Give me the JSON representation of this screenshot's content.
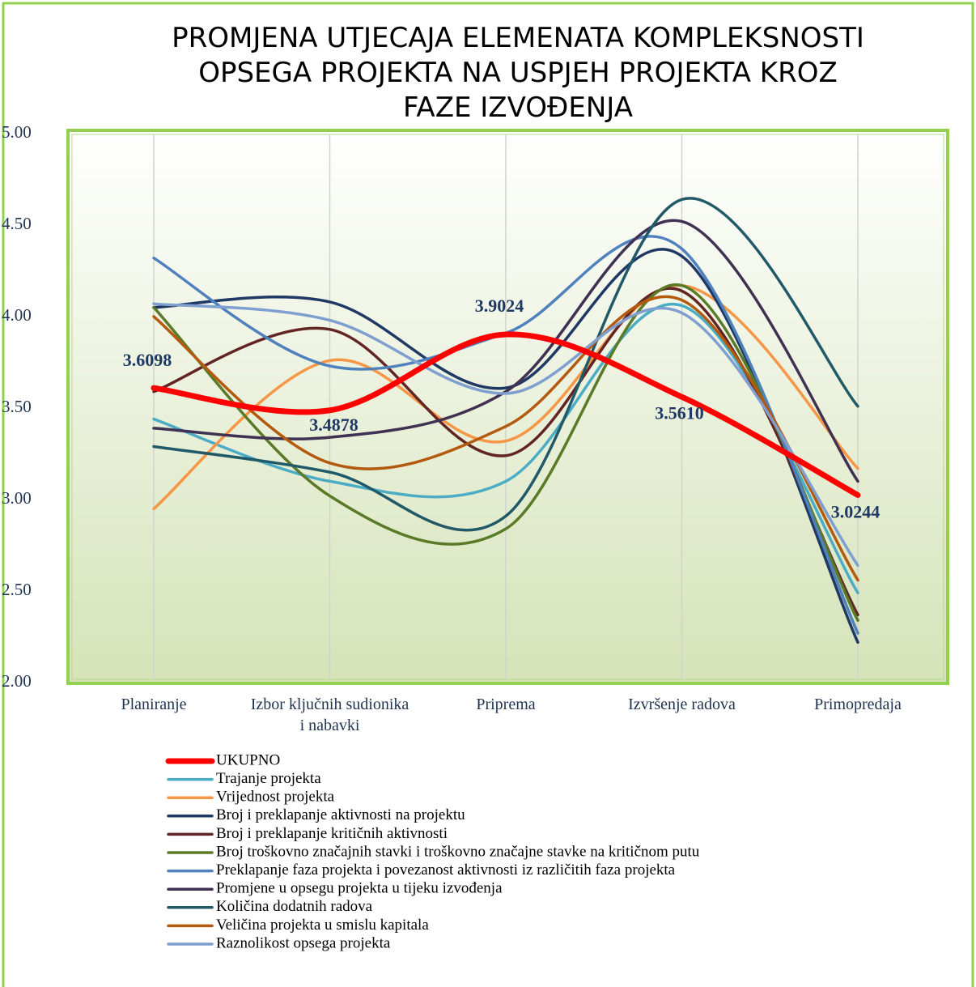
{
  "chart_data": {
    "type": "line",
    "title": [
      "PROMJENA UTJECAJA ELEMENATA KOMPLEKSNOSTI",
      "OPSEGA PROJEKTA NA USPJEH PROJEKTA KROZ",
      "FAZE IZVOĐENJA"
    ],
    "categories": [
      "Planiranje",
      "Izbor ključnih sudionika i nabavki",
      "Priprema",
      "Izvršenje radova",
      "Primopredaja"
    ],
    "ylim": [
      2,
      5
    ],
    "yticks": [
      {
        "value": 2,
        "label": "2.00"
      },
      {
        "value": 2.5,
        "label": "2.50"
      },
      {
        "value": 3,
        "label": "3.00"
      },
      {
        "value": 3.5,
        "label": "3.50"
      },
      {
        "value": 4,
        "label": "4.00"
      },
      {
        "value": 4.5,
        "label": "4.50"
      },
      {
        "value": 5,
        "label": "5.00"
      }
    ],
    "grid": false,
    "smooth": true,
    "legend": "bottom-left",
    "series": [
      {
        "name": "UKUPNO",
        "color": "#ff0000",
        "values": [
          3.6098,
          3.4878,
          3.9024,
          3.561,
          3.0244
        ],
        "value_labels": [
          "3.6098",
          "3.4878",
          "3.9024",
          "3.5610",
          "3.0244"
        ]
      },
      {
        "name": "Trajanje projekta",
        "color": "#4bacc6",
        "values": [
          3.44,
          3.1,
          3.1,
          4.06,
          2.49
        ]
      },
      {
        "name": "Vrijednost projekta",
        "color": "#f79646",
        "values": [
          2.95,
          3.76,
          3.32,
          4.17,
          3.17
        ]
      },
      {
        "name": "Broj i preklapanje aktivnosti na projektu",
        "color": "#1f3864",
        "values": [
          4.05,
          4.08,
          3.61,
          4.33,
          2.22
        ]
      },
      {
        "name": "Broj i preklapanje kritičnih aktivnosti",
        "color": "#632523",
        "values": [
          3.59,
          3.93,
          3.24,
          4.14,
          2.37
        ]
      },
      {
        "name": "Broj troškovno značajnih stavki i troškovno značajne stavke na kritičnom putu",
        "color": "#5a7a28",
        "values": [
          4.05,
          3.02,
          2.84,
          4.17,
          2.34
        ]
      },
      {
        "name": "Preklapanje faza projekta i povezanost aktivnosti iz različitih faza projekta",
        "color": "#4f81bd",
        "values": [
          4.32,
          3.73,
          3.91,
          4.37,
          2.27
        ]
      },
      {
        "name": "Promjene u opsegu projekta u tijeku izvođenja",
        "color": "#403152",
        "values": [
          3.39,
          3.34,
          3.59,
          4.52,
          3.1
        ]
      },
      {
        "name": "Količina dodatnih radova",
        "color": "#215968",
        "values": [
          3.29,
          3.15,
          2.91,
          4.64,
          3.51
        ]
      },
      {
        "name": "Veličina projekta u smislu kapitala",
        "color": "#b35a0f",
        "values": [
          4.0,
          3.2,
          3.4,
          4.09,
          2.56
        ]
      },
      {
        "name": "Raznolikost opsega projekta",
        "color": "#7f9fd0",
        "values": [
          4.07,
          3.98,
          3.58,
          4.02,
          2.64
        ]
      }
    ]
  }
}
